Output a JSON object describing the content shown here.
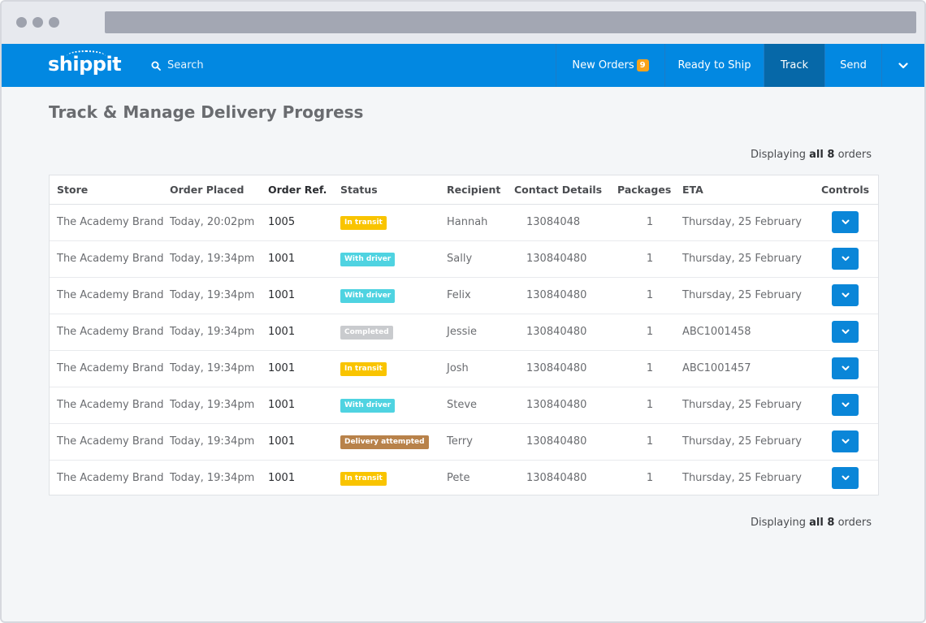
{
  "app": {
    "logo_text": "shippit",
    "search_label": "Search"
  },
  "nav": {
    "items": [
      {
        "label": "New Orders",
        "badge": "9"
      },
      {
        "label": "Ready to Ship"
      },
      {
        "label": "Track",
        "active": true
      },
      {
        "label": "Send"
      }
    ],
    "more_icon": "chevron-down-icon"
  },
  "page": {
    "title": "Track & Manage Delivery Progress",
    "displaying_prefix": "Displaying",
    "displaying_count": "all 8",
    "displaying_suffix": "orders"
  },
  "table": {
    "headers": [
      "Store",
      "Order Placed",
      "Order Ref.",
      "Status",
      "Recipient",
      "Contact Details",
      "Packages",
      "ETA",
      "Controls"
    ],
    "rows": [
      {
        "store": "The Academy Brand",
        "placed": "Today, 20:02pm",
        "ref": "1005",
        "status": "In transit",
        "status_color": "#f9c400",
        "recipient": "Hannah",
        "contact": "13084048",
        "packages": "1",
        "eta": "Thursday, 25 February"
      },
      {
        "store": "The Academy Brand",
        "placed": "Today, 19:34pm",
        "ref": "1001",
        "status": "With driver",
        "status_color": "#4fd3e1",
        "recipient": "Sally",
        "contact": "130840480",
        "packages": "1",
        "eta": "Thursday, 25 February"
      },
      {
        "store": "The Academy Brand",
        "placed": "Today, 19:34pm",
        "ref": "1001",
        "status": "With driver",
        "status_color": "#4fd3e1",
        "recipient": "Felix",
        "contact": "130840480",
        "packages": "1",
        "eta": "Thursday, 25 February"
      },
      {
        "store": "The Academy Brand",
        "placed": "Today, 19:34pm",
        "ref": "1001",
        "status": "Completed",
        "status_color": "#c9cbce",
        "recipient": "Jessie",
        "contact": "130840480",
        "packages": "1",
        "eta": "ABC1001458"
      },
      {
        "store": "The Academy Brand",
        "placed": "Today, 19:34pm",
        "ref": "1001",
        "status": "In transit",
        "status_color": "#f9c400",
        "recipient": "Josh",
        "contact": "130840480",
        "packages": "1",
        "eta": "ABC1001457"
      },
      {
        "store": "The Academy Brand",
        "placed": "Today, 19:34pm",
        "ref": "1001",
        "status": "With driver",
        "status_color": "#4fd3e1",
        "recipient": "Steve",
        "contact": "130840480",
        "packages": "1",
        "eta": "Thursday, 25 February"
      },
      {
        "store": "The Academy Brand",
        "placed": "Today, 19:34pm",
        "ref": "1001",
        "status": "Delivery attempted",
        "status_color": "#b8824a",
        "recipient": "Terry",
        "contact": "130840480",
        "packages": "1",
        "eta": "Thursday, 25 February"
      },
      {
        "store": "The Academy Brand",
        "placed": "Today, 19:34pm",
        "ref": "1001",
        "status": "In transit",
        "status_color": "#f9c400",
        "recipient": "Pete",
        "contact": "130840480",
        "packages": "1",
        "eta": "Thursday, 25 February"
      }
    ]
  },
  "colors": {
    "navbar": "#0288e1",
    "nav_active": "#0668a8",
    "badge": "#f9a31a",
    "control_button": "#0a86d8"
  }
}
